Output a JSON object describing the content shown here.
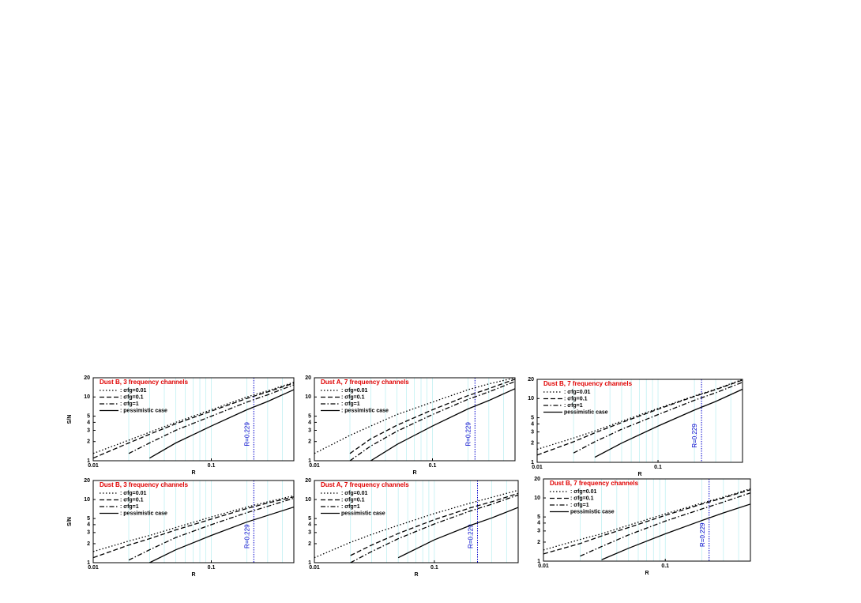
{
  "chart_data": [
    {
      "type": "line",
      "title": "Dust B, 3 frequency channels",
      "xlabel": "R",
      "ylabel": "S/N",
      "log_x": true,
      "log_y": true,
      "grid": true,
      "x": [
        0.01,
        0.02,
        0.03,
        0.05,
        0.1,
        0.2,
        0.3,
        0.5
      ],
      "xlim": [
        0.01,
        0.5
      ],
      "ylim": [
        1,
        20
      ],
      "xticks": [
        0.01,
        0.1
      ],
      "yticks": [
        1,
        2,
        3,
        4,
        5,
        10,
        20
      ],
      "xgrid": [
        0.02,
        0.03,
        0.04,
        0.05,
        0.06,
        0.07,
        0.08,
        0.09,
        0.2,
        0.3,
        0.4,
        0.5
      ],
      "vline": {
        "value": 0.229,
        "label": "R=0.229",
        "color": "#0000cc"
      },
      "series": [
        {
          "name": ": σfg=0.01",
          "color": "#000000",
          "style": "dotted",
          "values": [
            1.3,
            2.1,
            2.8,
            4.0,
            6.3,
            10,
            12.5,
            17
          ]
        },
        {
          "name": ": σfg=0.1",
          "color": "#000000",
          "style": "dashed",
          "values": [
            1.1,
            1.9,
            2.6,
            3.8,
            6,
            9.5,
            12,
            16.5
          ]
        },
        {
          "name": ": σfg=1",
          "color": "#000000",
          "style": "dashdot",
          "values": [
            null,
            1.3,
            1.9,
            3.0,
            5.0,
            8.3,
            10.8,
            15.5
          ]
        },
        {
          "name": ": pessimistic case",
          "color": "#000000",
          "style": "solid",
          "values": [
            null,
            null,
            1.1,
            1.9,
            3.5,
            6.3,
            8.5,
            13
          ]
        }
      ]
    },
    {
      "type": "line",
      "title": "Dust A, 7 frequency channels",
      "xlabel": "R",
      "log_x": true,
      "log_y": true,
      "grid": true,
      "x": [
        0.01,
        0.02,
        0.03,
        0.05,
        0.1,
        0.2,
        0.3,
        0.5
      ],
      "xlim": [
        0.01,
        0.5
      ],
      "ylim": [
        1,
        20
      ],
      "xticks": [
        0.01,
        0.1
      ],
      "yticks": [
        1,
        2,
        3,
        4,
        5,
        10,
        20
      ],
      "xgrid": [
        0.02,
        0.03,
        0.04,
        0.05,
        0.06,
        0.07,
        0.08,
        0.09,
        0.2,
        0.3,
        0.4,
        0.5
      ],
      "vline": {
        "value": 0.229,
        "label": "R=0.229",
        "color": "#0000cc"
      },
      "series": [
        {
          "name": ": σfg=0.01",
          "color": "#000000",
          "style": "dotted",
          "values": [
            1.3,
            2.5,
            3.5,
            5.3,
            8.3,
            13,
            16,
            20
          ]
        },
        {
          "name": ": σfg=0.1",
          "color": "#000000",
          "style": "dashed",
          "values": [
            null,
            1.3,
            2.2,
            3.6,
            6.3,
            10.5,
            13.5,
            19
          ]
        },
        {
          "name": ": σfg=1",
          "color": "#000000",
          "style": "dashdot",
          "values": [
            null,
            1.0,
            1.7,
            2.9,
            5.3,
            9.2,
            12,
            17.5
          ]
        },
        {
          "name": ": pessimistic case",
          "color": "#000000",
          "style": "solid",
          "values": [
            null,
            null,
            1.0,
            1.8,
            3.5,
            6.5,
            8.8,
            13.5
          ]
        }
      ]
    },
    {
      "type": "line",
      "title": "Dust B, 7 frequency channels",
      "xlabel": "R",
      "log_x": true,
      "log_y": true,
      "grid": true,
      "x": [
        0.01,
        0.02,
        0.03,
        0.05,
        0.1,
        0.2,
        0.3,
        0.5
      ],
      "xlim": [
        0.01,
        0.5
      ],
      "ylim": [
        1,
        20
      ],
      "xticks": [
        0.01,
        0.1
      ],
      "yticks": [
        1,
        2,
        3,
        4,
        5,
        10,
        20
      ],
      "xgrid": [
        0.02,
        0.03,
        0.04,
        0.05,
        0.06,
        0.07,
        0.08,
        0.09,
        0.2,
        0.3,
        0.4,
        0.5
      ],
      "vline": {
        "value": 0.229,
        "label": "R=0.229",
        "color": "#0000cc"
      },
      "series": [
        {
          "name": ": σfg=0.01",
          "color": "#000000",
          "style": "dotted",
          "values": [
            1.6,
            2.4,
            3.1,
            4.4,
            7,
            11,
            14,
            20
          ]
        },
        {
          "name": ": σfg=0.1",
          "color": "#000000",
          "style": "dashed",
          "values": [
            1.3,
            2.1,
            2.9,
            4.2,
            6.8,
            10.8,
            13.8,
            19.5
          ]
        },
        {
          "name": ": σfg=1",
          "color": "#000000",
          "style": "dashdot",
          "values": [
            null,
            1.4,
            2.1,
            3.3,
            5.6,
            9.4,
            12.3,
            18
          ]
        },
        {
          "name": "pessimistic case",
          "color": "#000000",
          "style": "solid",
          "values": [
            null,
            null,
            1.2,
            2.0,
            3.7,
            6.6,
            9,
            14
          ]
        }
      ]
    },
    {
      "type": "line",
      "title": "Dust B, 3 frequency channels",
      "xlabel": "R",
      "ylabel": "S/N",
      "log_x": true,
      "log_y": true,
      "grid": true,
      "x": [
        0.01,
        0.02,
        0.03,
        0.05,
        0.1,
        0.2,
        0.3,
        0.5
      ],
      "xlim": [
        0.01,
        0.5
      ],
      "ylim": [
        1,
        20
      ],
      "xticks": [
        0.01,
        0.1
      ],
      "yticks": [
        1,
        2,
        3,
        4,
        5,
        10,
        20
      ],
      "xgrid": [
        0.02,
        0.03,
        0.04,
        0.05,
        0.06,
        0.07,
        0.08,
        0.09,
        0.2,
        0.3,
        0.4,
        0.5
      ],
      "vline": {
        "value": 0.229,
        "label": "R=0.229",
        "color": "#0000cc"
      },
      "series": [
        {
          "name": ": σfg=0.01",
          "color": "#000000",
          "style": "dotted",
          "values": [
            1.5,
            2.2,
            2.7,
            3.6,
            5.3,
            7.6,
            9.2,
            11.5
          ]
        },
        {
          "name": ": σfg=0.1",
          "color": "#000000",
          "style": "dashed",
          "values": [
            1.2,
            1.9,
            2.4,
            3.3,
            4.9,
            7.2,
            8.8,
            11
          ]
        },
        {
          "name": ": σfg=1",
          "color": "#000000",
          "style": "dashdot",
          "values": [
            null,
            1.1,
            1.6,
            2.5,
            4.0,
            6.2,
            7.8,
            10.5
          ]
        },
        {
          "name": ": pessimistic case",
          "color": "#000000",
          "style": "solid",
          "values": [
            null,
            null,
            1.0,
            1.6,
            2.7,
            4.4,
            5.6,
            7.6
          ]
        }
      ]
    },
    {
      "type": "line",
      "title": "Dust A, 7 frequency channels",
      "xlabel": "R",
      "log_x": true,
      "log_y": true,
      "grid": true,
      "x": [
        0.01,
        0.02,
        0.03,
        0.05,
        0.1,
        0.2,
        0.3,
        0.5
      ],
      "xlim": [
        0.01,
        0.5
      ],
      "ylim": [
        1,
        20
      ],
      "xticks": [
        0.01,
        0.1
      ],
      "yticks": [
        1,
        2,
        3,
        4,
        5,
        10,
        20
      ],
      "xgrid": [
        0.02,
        0.03,
        0.04,
        0.05,
        0.06,
        0.07,
        0.08,
        0.09,
        0.2,
        0.3,
        0.4,
        0.5
      ],
      "vline": {
        "value": 0.229,
        "label": "R=0.229",
        "color": "#0000cc"
      },
      "series": [
        {
          "name": ": σfg=0.01",
          "color": "#000000",
          "style": "dotted",
          "values": [
            1.2,
            2.1,
            2.8,
            3.9,
            6.0,
            8.8,
            10.8,
            14
          ]
        },
        {
          "name": ": σfg=0.1",
          "color": "#000000",
          "style": "dashed",
          "values": [
            null,
            1.3,
            1.9,
            2.9,
            4.8,
            7.4,
            9.2,
            12.5
          ]
        },
        {
          "name": ": σfg=1",
          "color": "#000000",
          "style": "dashdot",
          "values": [
            null,
            1.0,
            1.5,
            2.4,
            4.1,
            6.6,
            8.4,
            11.8
          ]
        },
        {
          "name": "pessimistic case",
          "color": "#000000",
          "style": "solid",
          "values": [
            null,
            null,
            null,
            1.2,
            2.3,
            3.9,
            5.1,
            7.5
          ]
        }
      ]
    },
    {
      "type": "line",
      "title": "Dust B, 7 frequency channels",
      "xlabel": "R",
      "log_x": true,
      "log_y": true,
      "grid": true,
      "x": [
        0.01,
        0.02,
        0.03,
        0.05,
        0.1,
        0.2,
        0.3,
        0.5
      ],
      "xlim": [
        0.01,
        0.5
      ],
      "ylim": [
        1,
        20
      ],
      "xticks": [
        0.01,
        0.1
      ],
      "yticks": [
        1,
        2,
        3,
        4,
        5,
        10,
        20
      ],
      "xgrid": [
        0.02,
        0.03,
        0.04,
        0.05,
        0.06,
        0.07,
        0.08,
        0.09,
        0.2,
        0.3,
        0.4,
        0.5
      ],
      "vline": {
        "value": 0.229,
        "label": "R=0.229",
        "color": "#0000cc"
      },
      "series": [
        {
          "name": ": σfg=0.01",
          "color": "#000000",
          "style": "dotted",
          "values": [
            1.5,
            2.2,
            2.7,
            3.7,
            5.6,
            8.3,
            10.3,
            14
          ]
        },
        {
          "name": ": σfg=0.1",
          "color": "#000000",
          "style": "dashed",
          "values": [
            1.3,
            1.9,
            2.5,
            3.4,
            5.3,
            8.0,
            10,
            13.5
          ]
        },
        {
          "name": ": σfg=1",
          "color": "#000000",
          "style": "dashdot",
          "values": [
            null,
            1.2,
            1.7,
            2.6,
            4.3,
            6.7,
            8.6,
            12
          ]
        },
        {
          "name": "pessimistic case",
          "color": "#000000",
          "style": "solid",
          "values": [
            null,
            null,
            1.05,
            1.6,
            2.7,
            4.4,
            5.8,
            8
          ]
        }
      ]
    }
  ]
}
